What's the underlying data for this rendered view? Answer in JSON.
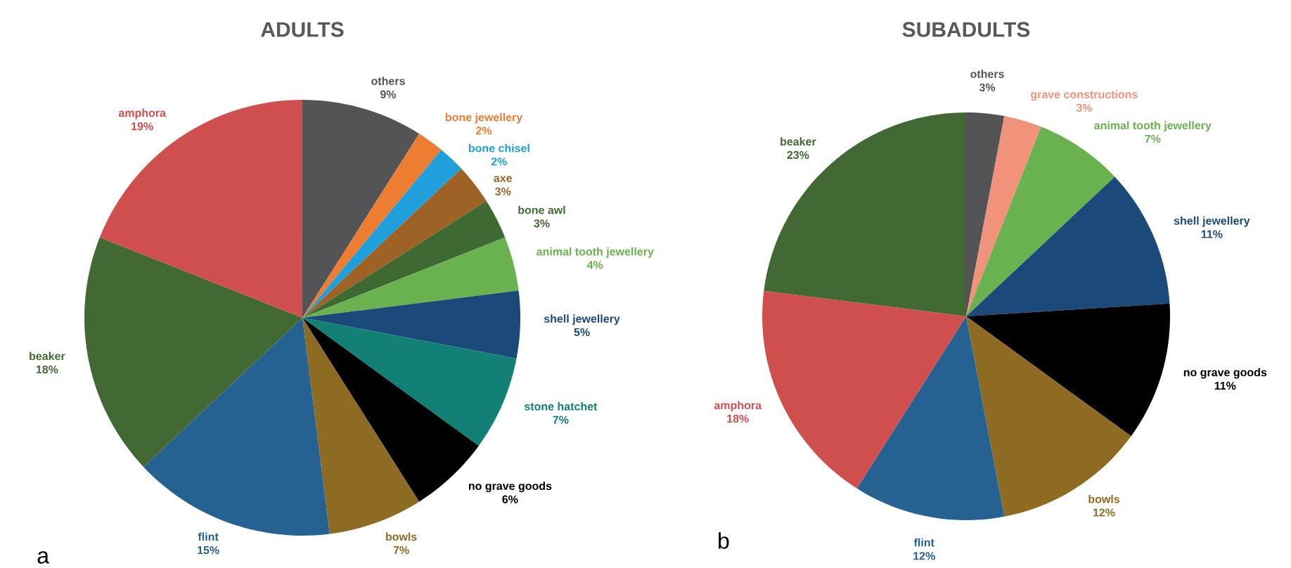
{
  "chart_data": [
    {
      "type": "pie",
      "title": "ADULTS",
      "categories": [
        "others",
        "bone jewellery",
        "bone chisel",
        "axe",
        "bone awl",
        "animal tooth jewellery",
        "shell jewellery",
        "stone hatchet",
        "no grave goods",
        "bowls",
        "flint",
        "beaker",
        "amphora"
      ],
      "values": [
        9,
        2,
        2,
        3,
        3,
        4,
        5,
        7,
        6,
        7,
        15,
        18,
        19
      ],
      "colors": [
        "#545456",
        "#ed7d31",
        "#1fa0da",
        "#9e6324",
        "#3f6932",
        "#6ab150",
        "#1b4a7a",
        "#128074",
        "#000000",
        "#8e6b22",
        "#256292",
        "#426933",
        "#cf4e4e"
      ],
      "value_labels": [
        "9%",
        "2%",
        "2%",
        "3%",
        "3%",
        "4%",
        "5%",
        "7%",
        "6%",
        "7%",
        "15%",
        "18%",
        "19%"
      ],
      "annotations": [
        "a"
      ]
    },
    {
      "type": "pie",
      "title": "SUBADULTS",
      "categories": [
        "others",
        "grave constructions",
        "animal tooth jewellery",
        "shell jewellery",
        "no grave goods",
        "bowls",
        "flint",
        "amphora",
        "beaker"
      ],
      "values": [
        3,
        3,
        7,
        11,
        11,
        12,
        12,
        18,
        23
      ],
      "colors": [
        "#545456",
        "#f0937a",
        "#6ab150",
        "#1b4a7a",
        "#000000",
        "#8e6b22",
        "#256292",
        "#cf4e4e",
        "#426933"
      ],
      "value_labels": [
        "3%",
        "3%",
        "7%",
        "11%",
        "11%",
        "12%",
        "12%",
        "18%",
        "23%"
      ],
      "annotations": [
        "b"
      ]
    }
  ]
}
